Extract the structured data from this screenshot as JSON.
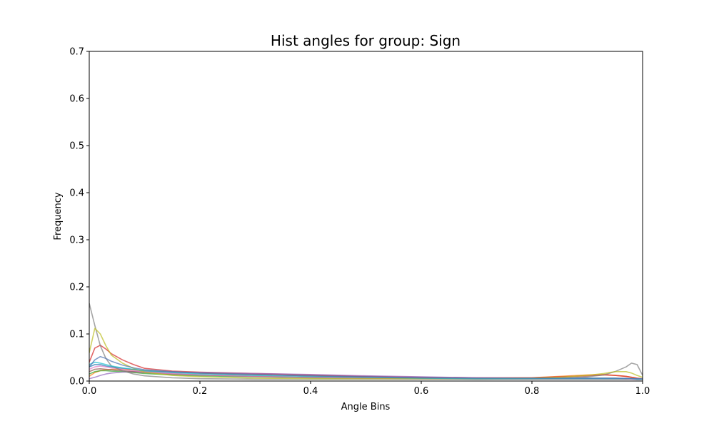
{
  "chart_data": {
    "type": "line",
    "title": "Hist angles for group: Sign",
    "xlabel": "Angle Bins",
    "ylabel": "Frequency",
    "xlim": [
      0,
      1
    ],
    "ylim": [
      0,
      0.7
    ],
    "xticks": [
      0.0,
      0.2,
      0.4,
      0.6,
      0.8,
      1.0
    ],
    "yticks": [
      0.0,
      0.1,
      0.2,
      0.3,
      0.4,
      0.5,
      0.6,
      0.7
    ],
    "grid": false,
    "legend": "none",
    "x": [
      0.0,
      0.01,
      0.02,
      0.03,
      0.04,
      0.06,
      0.08,
      0.1,
      0.15,
      0.2,
      0.3,
      0.4,
      0.5,
      0.6,
      0.7,
      0.8,
      0.85,
      0.9,
      0.93,
      0.95,
      0.97,
      0.98,
      0.99,
      1.0
    ],
    "series": [
      {
        "color": "#1f77b4",
        "values": [
          0.03,
          0.035,
          0.035,
          0.032,
          0.03,
          0.027,
          0.024,
          0.022,
          0.019,
          0.017,
          0.014,
          0.011,
          0.009,
          0.007,
          0.006,
          0.006,
          0.006,
          0.006,
          0.005,
          0.005,
          0.005,
          0.005,
          0.004,
          0.004
        ]
      },
      {
        "color": "#ff7f0e",
        "values": [
          0.01,
          0.018,
          0.022,
          0.024,
          0.025,
          0.025,
          0.024,
          0.022,
          0.019,
          0.017,
          0.014,
          0.011,
          0.009,
          0.007,
          0.006,
          0.007,
          0.01,
          0.013,
          0.014,
          0.012,
          0.01,
          0.008,
          0.006,
          0.004
        ]
      },
      {
        "color": "#2ca02c",
        "values": [
          0.015,
          0.02,
          0.022,
          0.022,
          0.021,
          0.02,
          0.018,
          0.016,
          0.013,
          0.011,
          0.009,
          0.007,
          0.006,
          0.005,
          0.005,
          0.005,
          0.005,
          0.006,
          0.006,
          0.006,
          0.005,
          0.005,
          0.004,
          0.004
        ]
      },
      {
        "color": "#d62728",
        "values": [
          0.04,
          0.07,
          0.076,
          0.068,
          0.058,
          0.045,
          0.035,
          0.027,
          0.021,
          0.019,
          0.016,
          0.013,
          0.01,
          0.008,
          0.007,
          0.007,
          0.009,
          0.011,
          0.013,
          0.012,
          0.01,
          0.008,
          0.006,
          0.005
        ]
      },
      {
        "color": "#9467bd",
        "values": [
          0.005,
          0.008,
          0.012,
          0.015,
          0.017,
          0.019,
          0.02,
          0.02,
          0.019,
          0.018,
          0.016,
          0.014,
          0.011,
          0.009,
          0.007,
          0.006,
          0.006,
          0.006,
          0.006,
          0.006,
          0.006,
          0.005,
          0.005,
          0.004
        ]
      },
      {
        "color": "#8c564b",
        "values": [
          0.02,
          0.025,
          0.026,
          0.025,
          0.024,
          0.022,
          0.02,
          0.018,
          0.015,
          0.013,
          0.01,
          0.008,
          0.006,
          0.005,
          0.004,
          0.004,
          0.004,
          0.004,
          0.004,
          0.004,
          0.004,
          0.004,
          0.003,
          0.003
        ]
      },
      {
        "color": "#e377c2",
        "values": [
          0.025,
          0.03,
          0.032,
          0.03,
          0.028,
          0.025,
          0.022,
          0.019,
          0.016,
          0.013,
          0.01,
          0.008,
          0.006,
          0.005,
          0.005,
          0.005,
          0.005,
          0.005,
          0.005,
          0.005,
          0.005,
          0.004,
          0.004,
          0.004
        ]
      },
      {
        "color": "#7f7f7f",
        "values": [
          0.165,
          0.118,
          0.075,
          0.048,
          0.032,
          0.022,
          0.015,
          0.011,
          0.007,
          0.005,
          0.004,
          0.004,
          0.004,
          0.004,
          0.004,
          0.005,
          0.006,
          0.009,
          0.013,
          0.02,
          0.03,
          0.038,
          0.035,
          0.012
        ]
      },
      {
        "color": "#bcbd22",
        "values": [
          0.06,
          0.112,
          0.1,
          0.075,
          0.055,
          0.038,
          0.027,
          0.019,
          0.012,
          0.009,
          0.006,
          0.005,
          0.005,
          0.005,
          0.005,
          0.006,
          0.008,
          0.012,
          0.016,
          0.02,
          0.02,
          0.017,
          0.012,
          0.008
        ]
      },
      {
        "color": "#17becf",
        "values": [
          0.035,
          0.04,
          0.038,
          0.035,
          0.032,
          0.028,
          0.025,
          0.022,
          0.018,
          0.015,
          0.012,
          0.01,
          0.008,
          0.006,
          0.005,
          0.005,
          0.005,
          0.005,
          0.005,
          0.005,
          0.005,
          0.005,
          0.004,
          0.004
        ]
      },
      {
        "color": "#4c72b0",
        "values": [
          0.03,
          0.045,
          0.052,
          0.048,
          0.042,
          0.034,
          0.028,
          0.024,
          0.02,
          0.017,
          0.014,
          0.011,
          0.009,
          0.007,
          0.006,
          0.006,
          0.006,
          0.006,
          0.006,
          0.006,
          0.005,
          0.005,
          0.005,
          0.005
        ]
      }
    ]
  }
}
